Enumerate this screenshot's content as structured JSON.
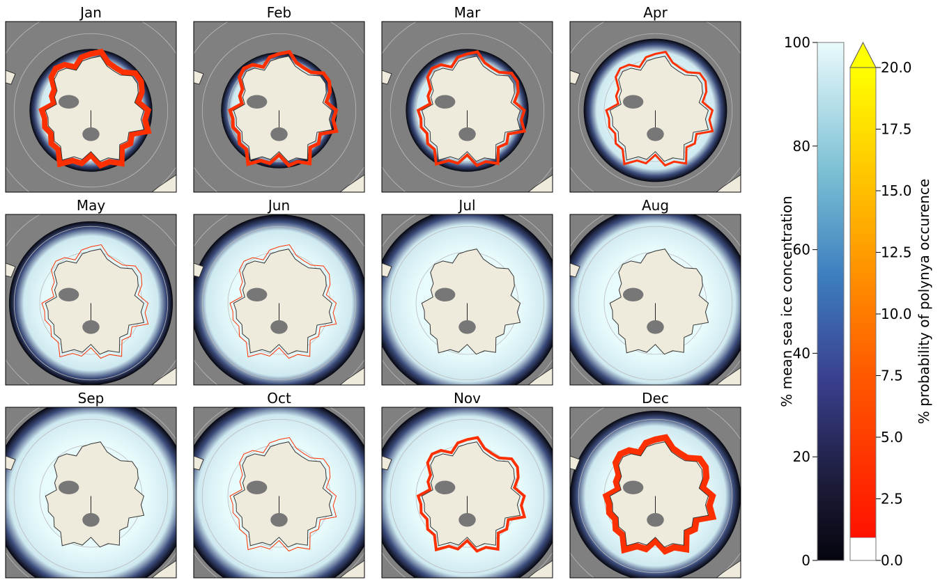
{
  "panels": [
    {
      "title": "Jan"
    },
    {
      "title": "Feb"
    },
    {
      "title": "Mar"
    },
    {
      "title": "Apr"
    },
    {
      "title": "May"
    },
    {
      "title": "Jun"
    },
    {
      "title": "Jul"
    },
    {
      "title": "Aug"
    },
    {
      "title": "Sep"
    },
    {
      "title": "Oct"
    },
    {
      "title": "Nov"
    },
    {
      "title": "Dec"
    }
  ],
  "colorbars": [
    {
      "label": "% mean sea ice concentration",
      "lim": [
        0,
        100
      ],
      "ticks": [
        0,
        20,
        40,
        60,
        80,
        100
      ]
    },
    {
      "label": "% probability of polynya occurence",
      "lim": [
        0,
        20
      ],
      "extend": "max",
      "ticks": [
        {
          "value": 0,
          "label": "0.0"
        },
        {
          "value": 2.5,
          "label": "2.5"
        },
        {
          "value": 5,
          "label": "5.0"
        },
        {
          "value": 7.5,
          "label": "7.5"
        },
        {
          "value": 10,
          "label": "10.0"
        },
        {
          "value": 12.5,
          "label": "12.5"
        },
        {
          "value": 15,
          "label": "15.0"
        },
        {
          "value": 17.5,
          "label": "17.5"
        },
        {
          "value": 20,
          "label": "20.0"
        }
      ]
    }
  ]
}
